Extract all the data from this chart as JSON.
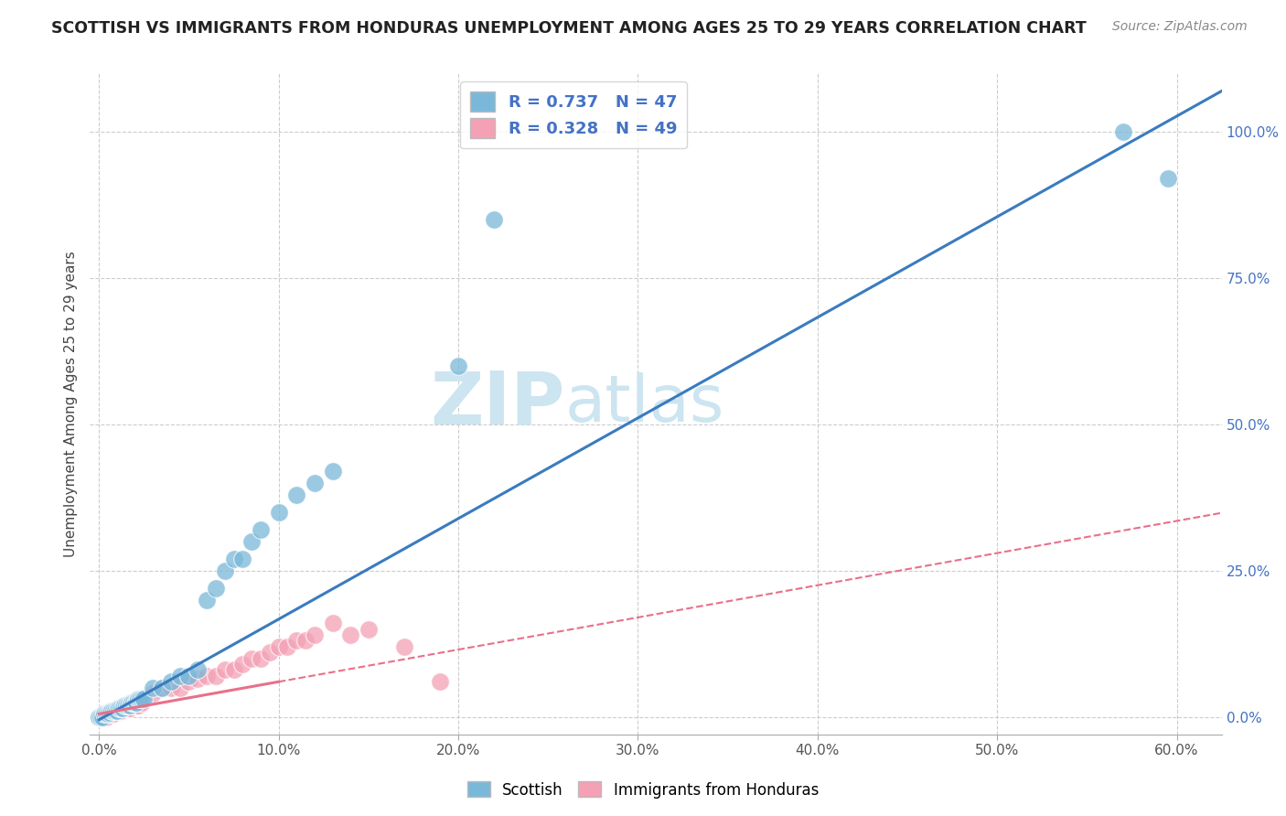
{
  "title": "SCOTTISH VS IMMIGRANTS FROM HONDURAS UNEMPLOYMENT AMONG AGES 25 TO 29 YEARS CORRELATION CHART",
  "source": "Source: ZipAtlas.com",
  "xlabel_ticks": [
    "0.0%",
    "",
    "",
    "",
    "",
    "",
    "",
    "",
    "",
    "",
    "10.0%",
    "",
    "",
    "",
    "",
    "",
    "",
    "",
    "",
    "",
    "20.0%",
    "",
    "",
    "",
    "",
    "",
    "",
    "",
    "",
    "",
    "30.0%",
    "",
    "",
    "",
    "",
    "",
    "",
    "",
    "",
    "",
    "40.0%",
    "",
    "",
    "",
    "",
    "",
    "",
    "",
    "",
    "",
    "50.0%",
    "",
    "",
    "",
    "",
    "",
    "",
    "",
    "",
    "",
    "60.0%"
  ],
  "xlabel_vals_labels": [
    0.0,
    0.1,
    0.2,
    0.3,
    0.4,
    0.5,
    0.6
  ],
  "ylabel_ticks": [
    "0.0%",
    "25.0%",
    "50.0%",
    "75.0%",
    "100.0%"
  ],
  "ylabel_vals": [
    0.0,
    0.25,
    0.5,
    0.75,
    1.0
  ],
  "ylabel_label": "Unemployment Among Ages 25 to 29 years",
  "xlim": [
    -0.005,
    0.625
  ],
  "ylim": [
    -0.03,
    1.1
  ],
  "R_scottish": 0.737,
  "N_scottish": 47,
  "R_honduras": 0.328,
  "N_honduras": 49,
  "scottish_color": "#7ab8d9",
  "honduras_color": "#f4a0b5",
  "regression_scottish_color": "#3a7bbf",
  "regression_honduras_color": "#e8708a",
  "regression_scottish_m": 1.72,
  "regression_scottish_b": -0.005,
  "regression_honduras_solid_end": 0.1,
  "regression_honduras_m": 0.55,
  "regression_honduras_b": 0.005,
  "watermark_zip": "ZIP",
  "watermark_atlas": "atlas",
  "watermark_color": "#cce5f0",
  "background_color": "#ffffff",
  "grid_color": "#cccccc",
  "scottish_x": [
    0.0,
    0.001,
    0.002,
    0.003,
    0.004,
    0.005,
    0.006,
    0.007,
    0.008,
    0.009,
    0.01,
    0.011,
    0.012,
    0.013,
    0.014,
    0.015,
    0.016,
    0.017,
    0.018,
    0.019,
    0.02,
    0.021,
    0.022,
    0.023,
    0.024,
    0.025,
    0.03,
    0.035,
    0.04,
    0.045,
    0.05,
    0.055,
    0.06,
    0.065,
    0.07,
    0.075,
    0.08,
    0.085,
    0.09,
    0.1,
    0.11,
    0.12,
    0.13,
    0.2,
    0.22,
    0.57,
    0.595
  ],
  "scottish_y": [
    0.0,
    0.0,
    0.0,
    0.005,
    0.005,
    0.005,
    0.008,
    0.01,
    0.01,
    0.01,
    0.01,
    0.015,
    0.015,
    0.015,
    0.02,
    0.02,
    0.02,
    0.02,
    0.025,
    0.025,
    0.025,
    0.025,
    0.03,
    0.03,
    0.03,
    0.03,
    0.05,
    0.05,
    0.06,
    0.07,
    0.07,
    0.08,
    0.2,
    0.22,
    0.25,
    0.27,
    0.27,
    0.3,
    0.32,
    0.35,
    0.38,
    0.4,
    0.42,
    0.6,
    0.85,
    1.0,
    0.92
  ],
  "honduras_x": [
    0.0,
    0.001,
    0.002,
    0.003,
    0.004,
    0.005,
    0.006,
    0.007,
    0.008,
    0.009,
    0.01,
    0.011,
    0.012,
    0.013,
    0.014,
    0.015,
    0.016,
    0.017,
    0.018,
    0.019,
    0.02,
    0.021,
    0.022,
    0.023,
    0.024,
    0.03,
    0.035,
    0.04,
    0.045,
    0.05,
    0.055,
    0.06,
    0.065,
    0.07,
    0.075,
    0.08,
    0.085,
    0.09,
    0.095,
    0.1,
    0.105,
    0.11,
    0.115,
    0.12,
    0.13,
    0.14,
    0.15,
    0.17,
    0.19
  ],
  "honduras_y": [
    0.0,
    0.0,
    0.0,
    0.0,
    0.0,
    0.005,
    0.005,
    0.005,
    0.005,
    0.01,
    0.01,
    0.01,
    0.01,
    0.015,
    0.015,
    0.015,
    0.015,
    0.015,
    0.02,
    0.02,
    0.02,
    0.02,
    0.02,
    0.025,
    0.025,
    0.04,
    0.05,
    0.05,
    0.05,
    0.06,
    0.065,
    0.07,
    0.07,
    0.08,
    0.08,
    0.09,
    0.1,
    0.1,
    0.11,
    0.12,
    0.12,
    0.13,
    0.13,
    0.14,
    0.16,
    0.14,
    0.15,
    0.12,
    0.06
  ]
}
